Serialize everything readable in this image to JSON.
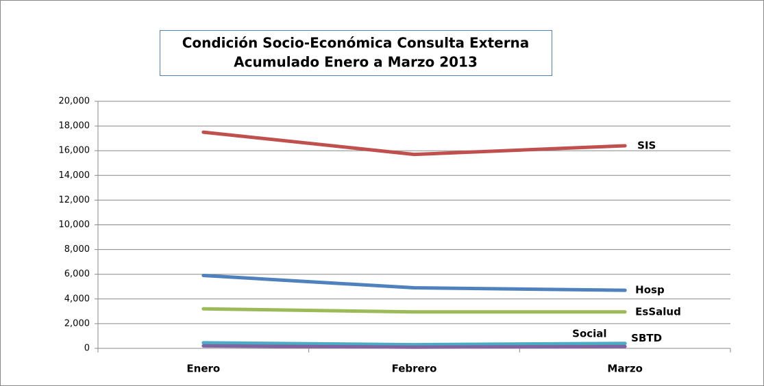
{
  "chart_data": {
    "type": "line",
    "title": [
      "Condición Socio-Económica Consulta Externa",
      "Acumulado Enero a Marzo 2013"
    ],
    "categories": [
      "Enero",
      "Febrero",
      "Marzo"
    ],
    "series": [
      {
        "name": "SIS",
        "color": "#c0504d",
        "values": [
          17500,
          15700,
          16400
        ]
      },
      {
        "name": "Hosp",
        "color": "#4f81bd",
        "values": [
          5900,
          4900,
          4700
        ]
      },
      {
        "name": "EsSalud",
        "color": "#9bbb59",
        "values": [
          3200,
          2950,
          2950
        ]
      },
      {
        "name": "Social",
        "color": "#4bacc6",
        "values": [
          450,
          300,
          400
        ]
      },
      {
        "name": "SBTD",
        "color": "#8064a2",
        "values": [
          200,
          100,
          150
        ]
      }
    ],
    "ylim": [
      0,
      20000
    ],
    "yticks": [
      0,
      {
        "value": 2000,
        "label": "2,000"
      },
      {
        "value": 4000,
        "label": "4,000"
      },
      {
        "value": 6000,
        "label": "6,000"
      },
      {
        "value": 8000,
        "label": "8,000"
      },
      {
        "value": 10000,
        "label": "10,000"
      },
      {
        "value": 12000,
        "label": "12,000"
      },
      {
        "value": 14000,
        "label": "14,000"
      },
      {
        "value": 16000,
        "label": "16,000"
      },
      {
        "value": 18000,
        "label": "18,000"
      },
      {
        "value": 20000,
        "label": "20,000"
      }
    ],
    "grid": true
  }
}
